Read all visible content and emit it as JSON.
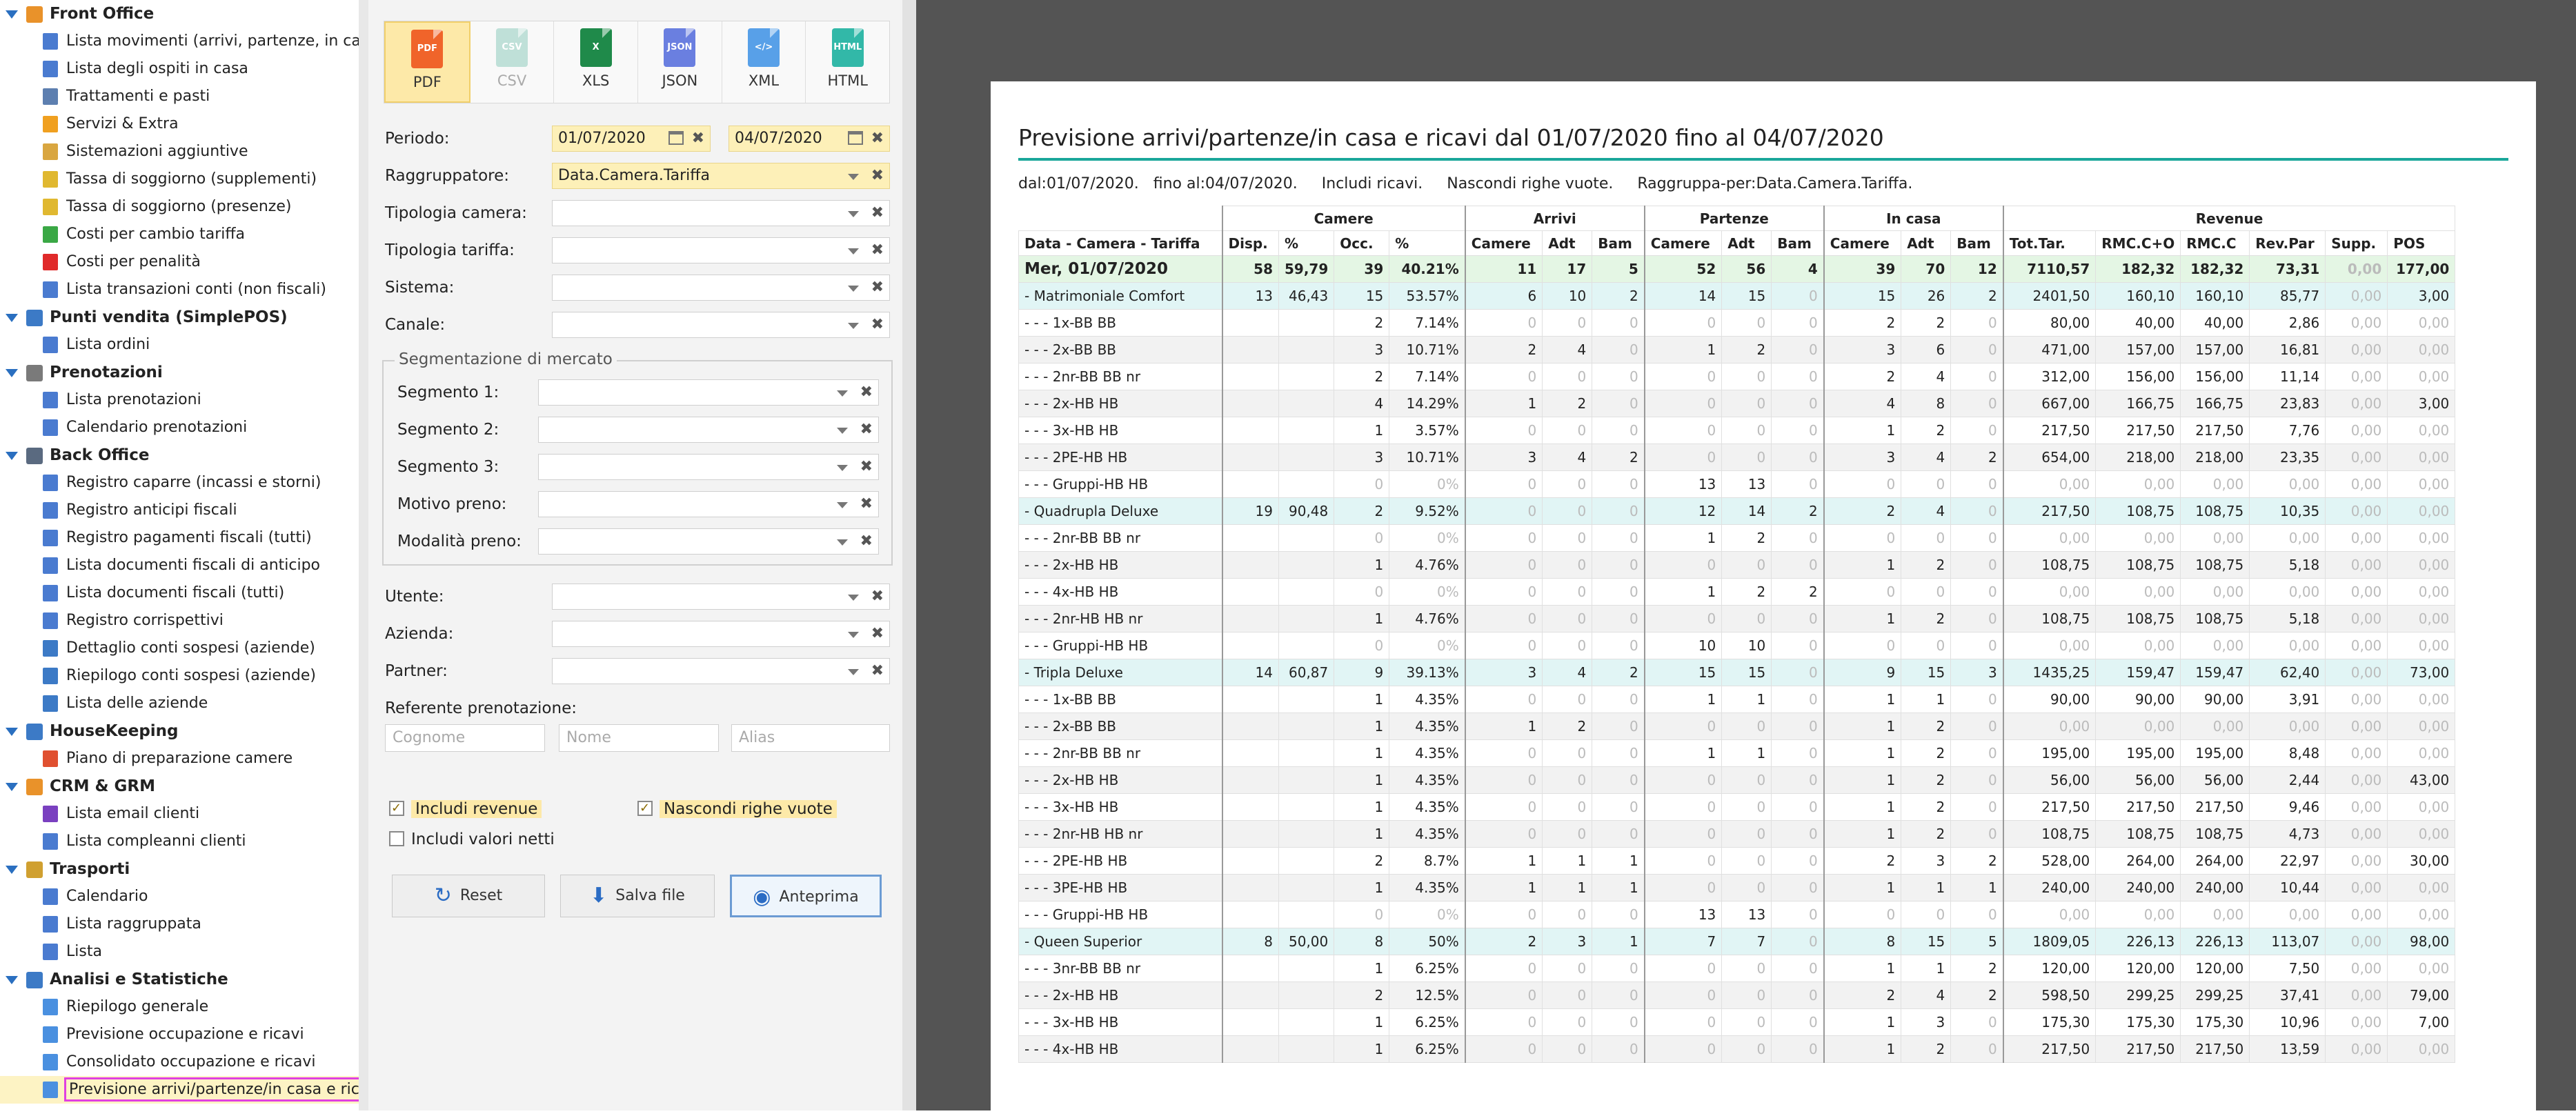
{
  "sidebar": {
    "groups": [
      {
        "label": "Front Office",
        "color": "#e9922a",
        "items": [
          {
            "label": "Lista movimenti (arrivi, partenze, in casa)",
            "color": "#4a7bd0"
          },
          {
            "label": "Lista degli ospiti in casa",
            "color": "#4a7bd0"
          },
          {
            "label": "Trattamenti e pasti",
            "color": "#5d7fb0"
          },
          {
            "label": "Servizi & Extra",
            "color": "#f0a020"
          },
          {
            "label": "Sistemazioni aggiuntive",
            "color": "#d9a640"
          },
          {
            "label": "Tassa di soggiorno (supplementi)",
            "color": "#e0b830"
          },
          {
            "label": "Tassa di soggiorno (presenze)",
            "color": "#e0b830"
          },
          {
            "label": "Costi per cambio tariffa",
            "color": "#3aa845"
          },
          {
            "label": "Costi per penalità",
            "color": "#e02a2a"
          },
          {
            "label": "Lista transazioni conti (non fiscali)",
            "color": "#4a7bd0"
          }
        ]
      },
      {
        "label": "Punti vendita (SimplePOS)",
        "color": "#3c7ac6",
        "items": [
          {
            "label": "Lista ordini",
            "color": "#4a7bd0"
          }
        ]
      },
      {
        "label": "Prenotazioni",
        "color": "#7a7a7a",
        "items": [
          {
            "label": "Lista prenotazioni",
            "color": "#4a7bd0"
          },
          {
            "label": "Calendario prenotazioni",
            "color": "#4a7bd0"
          }
        ]
      },
      {
        "label": "Back Office",
        "color": "#5a6a80",
        "items": [
          {
            "label": "Registro caparre (incassi e storni)",
            "color": "#4a7bd0"
          },
          {
            "label": "Registro anticipi fiscali",
            "color": "#4a7bd0"
          },
          {
            "label": "Registro pagamenti fiscali (tutti)",
            "color": "#4a7bd0"
          },
          {
            "label": "Lista documenti fiscali di anticipo",
            "color": "#4a7bd0"
          },
          {
            "label": "Lista documenti fiscali (tutti)",
            "color": "#4a7bd0"
          },
          {
            "label": "Registro corrispettivi",
            "color": "#4a7bd0"
          },
          {
            "label": "Dettaglio conti sospesi (aziende)",
            "color": "#3c7ac6"
          },
          {
            "label": "Riepilogo conti sospesi (aziende)",
            "color": "#3c7ac6"
          },
          {
            "label": "Lista delle aziende",
            "color": "#3c7ac6"
          }
        ]
      },
      {
        "label": "HouseKeeping",
        "color": "#3c7ac6",
        "items": [
          {
            "label": "Piano di preparazione camere",
            "color": "#e05030"
          }
        ]
      },
      {
        "label": "CRM & GRM",
        "color": "#e9922a",
        "items": [
          {
            "label": "Lista email clienti",
            "color": "#7a40c0"
          },
          {
            "label": "Lista compleanni clienti",
            "color": "#4a7bd0"
          }
        ]
      },
      {
        "label": "Trasporti",
        "color": "#d0a030",
        "items": [
          {
            "label": "Calendario",
            "color": "#4a7bd0"
          },
          {
            "label": "Lista raggruppata",
            "color": "#4a7bd0"
          },
          {
            "label": "Lista",
            "color": "#4a7bd0"
          }
        ]
      },
      {
        "label": "Analisi e Statistiche",
        "color": "#3c7ac6",
        "items": [
          {
            "label": "Riepilogo generale",
            "color": "#4a90e0"
          },
          {
            "label": "Previsione occupazione e ricavi",
            "color": "#4a90e0"
          },
          {
            "label": "Consolidato occupazione e ricavi",
            "color": "#4a90e0"
          },
          {
            "label": "Previsione arrivi/partenze/in casa e ricavi",
            "color": "#4a90e0",
            "selected": true
          }
        ]
      }
    ]
  },
  "filters": {
    "exports": [
      {
        "label": "PDF",
        "icon": "PDF",
        "color": "#f0642a",
        "active": true
      },
      {
        "label": "CSV",
        "icon": "CSV",
        "color": "#bfe0d8",
        "disabled": true
      },
      {
        "label": "XLS",
        "icon": "X",
        "color": "#1f8a4a"
      },
      {
        "label": "JSON",
        "icon": "JSON",
        "color": "#6a7fe0"
      },
      {
        "label": "XML",
        "icon": "</>",
        "color": "#58a0e8"
      },
      {
        "label": "HTML",
        "icon": "HTML",
        "color": "#32b8a8"
      }
    ],
    "periodo_label": "Periodo:",
    "date_from": "01/07/2020",
    "date_to": "04/07/2020",
    "raggruppatore_label": "Raggruppatore:",
    "raggruppatore_value": "Data.Camera.Tariffa",
    "tipologia_camera_label": "Tipologia camera:",
    "tipologia_tariffa_label": "Tipologia tariffa:",
    "sistema_label": "Sistema:",
    "canale_label": "Canale:",
    "segmentazione_label": "Segmentazione di mercato",
    "segmento1_label": "Segmento 1:",
    "segmento2_label": "Segmento 2:",
    "segmento3_label": "Segmento 3:",
    "motivo_label": "Motivo preno:",
    "modalita_label": "Modalità preno:",
    "utente_label": "Utente:",
    "azienda_label": "Azienda:",
    "partner_label": "Partner:",
    "referente_label": "Referente prenotazione:",
    "cognome_placeholder": "Cognome",
    "nome_placeholder": "Nome",
    "alias_placeholder": "Alias",
    "includi_revenue": "Includi revenue",
    "nascondi_righe": "Nascondi righe vuote",
    "includi_netti": "Includi valori netti",
    "reset_label": "Reset",
    "salva_label": "Salva file",
    "anteprima_label": "Anteprima"
  },
  "report": {
    "title": "Previsione arrivi/partenze/in casa e ricavi dal 01/07/2020 fino al 04/07/2020",
    "params": "dal:01/07/2020.   fino al:04/07/2020.     Includi ricavi.     Nascondi righe vuote.     Raggruppa-per:Data.Camera.Tariffa.",
    "group_headers": [
      "Camere",
      "Arrivi",
      "Partenze",
      "In casa",
      "Revenue"
    ],
    "columns": [
      "Data - Camera - Tariffa",
      "Disp.",
      "%",
      "Occ.",
      "%",
      "Camere",
      "Adt",
      "Bam",
      "Camere",
      "Adt",
      "Bam",
      "Camere",
      "Adt",
      "Bam",
      "Tot.Tar.",
      "RMC.C+O",
      "RMC.C",
      "Rev.Par",
      "Supp.",
      "POS"
    ],
    "rows": [
      {
        "t": "day",
        "c": [
          "Mer, 01/07/2020",
          "58",
          "59,79",
          "39",
          "40.21%",
          "11",
          "17",
          "5",
          "52",
          "56",
          "4",
          "39",
          "70",
          "12",
          "7110,57",
          "182,32",
          "182,32",
          "73,31",
          "0,00",
          "177,00"
        ]
      },
      {
        "t": "room",
        "c": [
          "- Matrimoniale Comfort",
          "13",
          "46,43",
          "15",
          "53.57%",
          "6",
          "10",
          "2",
          "14",
          "15",
          "0",
          "15",
          "26",
          "2",
          "2401,50",
          "160,10",
          "160,10",
          "85,77",
          "0,00",
          "3,00"
        ]
      },
      {
        "t": "rate",
        "c": [
          "- - - 1x-BB BB",
          "",
          "",
          "2",
          "7.14%",
          "0",
          "0",
          "0",
          "0",
          "0",
          "0",
          "2",
          "2",
          "0",
          "80,00",
          "40,00",
          "40,00",
          "2,86",
          "0,00",
          "0,00"
        ]
      },
      {
        "t": "rate",
        "c": [
          "- - - 2x-BB BB",
          "",
          "",
          "3",
          "10.71%",
          "2",
          "4",
          "0",
          "1",
          "2",
          "0",
          "3",
          "6",
          "0",
          "471,00",
          "157,00",
          "157,00",
          "16,81",
          "0,00",
          "0,00"
        ]
      },
      {
        "t": "rate",
        "c": [
          "- - - 2nr-BB BB nr",
          "",
          "",
          "2",
          "7.14%",
          "0",
          "0",
          "0",
          "0",
          "0",
          "0",
          "2",
          "4",
          "0",
          "312,00",
          "156,00",
          "156,00",
          "11,14",
          "0,00",
          "0,00"
        ]
      },
      {
        "t": "rate",
        "c": [
          "- - - 2x-HB HB",
          "",
          "",
          "4",
          "14.29%",
          "1",
          "2",
          "0",
          "0",
          "0",
          "0",
          "4",
          "8",
          "0",
          "667,00",
          "166,75",
          "166,75",
          "23,83",
          "0,00",
          "3,00"
        ]
      },
      {
        "t": "rate",
        "c": [
          "- - - 3x-HB HB",
          "",
          "",
          "1",
          "3.57%",
          "0",
          "0",
          "0",
          "0",
          "0",
          "0",
          "1",
          "2",
          "0",
          "217,50",
          "217,50",
          "217,50",
          "7,76",
          "0,00",
          "0,00"
        ]
      },
      {
        "t": "rate",
        "c": [
          "- - - 2PE-HB HB",
          "",
          "",
          "3",
          "10.71%",
          "3",
          "4",
          "2",
          "0",
          "0",
          "0",
          "3",
          "4",
          "2",
          "654,00",
          "218,00",
          "218,00",
          "23,35",
          "0,00",
          "0,00"
        ]
      },
      {
        "t": "rate",
        "c": [
          "- - - Gruppi-HB HB",
          "",
          "",
          "0",
          "0%",
          "0",
          "0",
          "0",
          "13",
          "13",
          "0",
          "0",
          "0",
          "0",
          "0,00",
          "0,00",
          "0,00",
          "0,00",
          "0,00",
          "0,00"
        ]
      },
      {
        "t": "room",
        "c": [
          "- Quadrupla Deluxe",
          "19",
          "90,48",
          "2",
          "9.52%",
          "0",
          "0",
          "0",
          "12",
          "14",
          "2",
          "2",
          "4",
          "0",
          "217,50",
          "108,75",
          "108,75",
          "10,35",
          "0,00",
          "0,00"
        ]
      },
      {
        "t": "rate",
        "c": [
          "- - - 2nr-BB BB nr",
          "",
          "",
          "0",
          "0%",
          "0",
          "0",
          "0",
          "1",
          "2",
          "0",
          "0",
          "0",
          "0",
          "0,00",
          "0,00",
          "0,00",
          "0,00",
          "0,00",
          "0,00"
        ]
      },
      {
        "t": "rate",
        "c": [
          "- - - 2x-HB HB",
          "",
          "",
          "1",
          "4.76%",
          "0",
          "0",
          "0",
          "0",
          "0",
          "0",
          "1",
          "2",
          "0",
          "108,75",
          "108,75",
          "108,75",
          "5,18",
          "0,00",
          "0,00"
        ]
      },
      {
        "t": "rate",
        "c": [
          "- - - 4x-HB HB",
          "",
          "",
          "0",
          "0%",
          "0",
          "0",
          "0",
          "1",
          "2",
          "2",
          "0",
          "0",
          "0",
          "0,00",
          "0,00",
          "0,00",
          "0,00",
          "0,00",
          "0,00"
        ]
      },
      {
        "t": "rate",
        "c": [
          "- - - 2nr-HB HB nr",
          "",
          "",
          "1",
          "4.76%",
          "0",
          "0",
          "0",
          "0",
          "0",
          "0",
          "1",
          "2",
          "0",
          "108,75",
          "108,75",
          "108,75",
          "5,18",
          "0,00",
          "0,00"
        ]
      },
      {
        "t": "rate",
        "c": [
          "- - - Gruppi-HB HB",
          "",
          "",
          "0",
          "0%",
          "0",
          "0",
          "0",
          "10",
          "10",
          "0",
          "0",
          "0",
          "0",
          "0,00",
          "0,00",
          "0,00",
          "0,00",
          "0,00",
          "0,00"
        ]
      },
      {
        "t": "room",
        "c": [
          "- Tripla Deluxe",
          "14",
          "60,87",
          "9",
          "39.13%",
          "3",
          "4",
          "2",
          "15",
          "15",
          "0",
          "9",
          "15",
          "3",
          "1435,25",
          "159,47",
          "159,47",
          "62,40",
          "0,00",
          "73,00"
        ]
      },
      {
        "t": "rate",
        "c": [
          "- - - 1x-BB BB",
          "",
          "",
          "1",
          "4.35%",
          "0",
          "0",
          "0",
          "1",
          "1",
          "0",
          "1",
          "1",
          "0",
          "90,00",
          "90,00",
          "90,00",
          "3,91",
          "0,00",
          "0,00"
        ]
      },
      {
        "t": "rate",
        "c": [
          "- - - 2x-BB BB",
          "",
          "",
          "1",
          "4.35%",
          "1",
          "2",
          "0",
          "0",
          "0",
          "0",
          "1",
          "2",
          "0",
          "0,00",
          "0,00",
          "0,00",
          "0,00",
          "0,00",
          "0,00"
        ]
      },
      {
        "t": "rate",
        "c": [
          "- - - 2nr-BB BB nr",
          "",
          "",
          "1",
          "4.35%",
          "0",
          "0",
          "0",
          "1",
          "1",
          "0",
          "1",
          "2",
          "0",
          "195,00",
          "195,00",
          "195,00",
          "8,48",
          "0,00",
          "0,00"
        ]
      },
      {
        "t": "rate",
        "c": [
          "- - - 2x-HB HB",
          "",
          "",
          "1",
          "4.35%",
          "0",
          "0",
          "0",
          "0",
          "0",
          "0",
          "1",
          "2",
          "0",
          "56,00",
          "56,00",
          "56,00",
          "2,44",
          "0,00",
          "43,00"
        ]
      },
      {
        "t": "rate",
        "c": [
          "- - - 3x-HB HB",
          "",
          "",
          "1",
          "4.35%",
          "0",
          "0",
          "0",
          "0",
          "0",
          "0",
          "1",
          "2",
          "0",
          "217,50",
          "217,50",
          "217,50",
          "9,46",
          "0,00",
          "0,00"
        ]
      },
      {
        "t": "rate",
        "c": [
          "- - - 2nr-HB HB nr",
          "",
          "",
          "1",
          "4.35%",
          "0",
          "0",
          "0",
          "0",
          "0",
          "0",
          "1",
          "2",
          "0",
          "108,75",
          "108,75",
          "108,75",
          "4,73",
          "0,00",
          "0,00"
        ]
      },
      {
        "t": "rate",
        "c": [
          "- - - 2PE-HB HB",
          "",
          "",
          "2",
          "8.7%",
          "1",
          "1",
          "1",
          "0",
          "0",
          "0",
          "2",
          "3",
          "2",
          "528,00",
          "264,00",
          "264,00",
          "22,97",
          "0,00",
          "30,00"
        ]
      },
      {
        "t": "rate",
        "c": [
          "- - - 3PE-HB HB",
          "",
          "",
          "1",
          "4.35%",
          "1",
          "1",
          "1",
          "0",
          "0",
          "0",
          "1",
          "1",
          "1",
          "240,00",
          "240,00",
          "240,00",
          "10,44",
          "0,00",
          "0,00"
        ]
      },
      {
        "t": "rate",
        "c": [
          "- - - Gruppi-HB HB",
          "",
          "",
          "0",
          "0%",
          "0",
          "0",
          "0",
          "13",
          "13",
          "0",
          "0",
          "0",
          "0",
          "0,00",
          "0,00",
          "0,00",
          "0,00",
          "0,00",
          "0,00"
        ]
      },
      {
        "t": "room",
        "c": [
          "- Queen Superior",
          "8",
          "50,00",
          "8",
          "50%",
          "2",
          "3",
          "1",
          "7",
          "7",
          "0",
          "8",
          "15",
          "5",
          "1809,05",
          "226,13",
          "226,13",
          "113,07",
          "0,00",
          "98,00"
        ]
      },
      {
        "t": "rate",
        "c": [
          "- - - 3nr-BB BB nr",
          "",
          "",
          "1",
          "6.25%",
          "0",
          "0",
          "0",
          "0",
          "0",
          "0",
          "1",
          "1",
          "2",
          "120,00",
          "120,00",
          "120,00",
          "7,50",
          "0,00",
          "0,00"
        ]
      },
      {
        "t": "rate",
        "c": [
          "- - - 2x-HB HB",
          "",
          "",
          "2",
          "12.5%",
          "0",
          "0",
          "0",
          "0",
          "0",
          "0",
          "2",
          "4",
          "2",
          "598,50",
          "299,25",
          "299,25",
          "37,41",
          "0,00",
          "79,00"
        ]
      },
      {
        "t": "rate",
        "c": [
          "- - - 3x-HB HB",
          "",
          "",
          "1",
          "6.25%",
          "0",
          "0",
          "0",
          "0",
          "0",
          "0",
          "1",
          "3",
          "0",
          "175,30",
          "175,30",
          "175,30",
          "10,96",
          "0,00",
          "7,00"
        ]
      },
      {
        "t": "rate",
        "c": [
          "- - - 4x-HB HB",
          "",
          "",
          "1",
          "6.25%",
          "0",
          "0",
          "0",
          "0",
          "0",
          "0",
          "1",
          "2",
          "0",
          "217,50",
          "217,50",
          "217,50",
          "13,59",
          "0,00",
          "0,00"
        ]
      }
    ]
  }
}
